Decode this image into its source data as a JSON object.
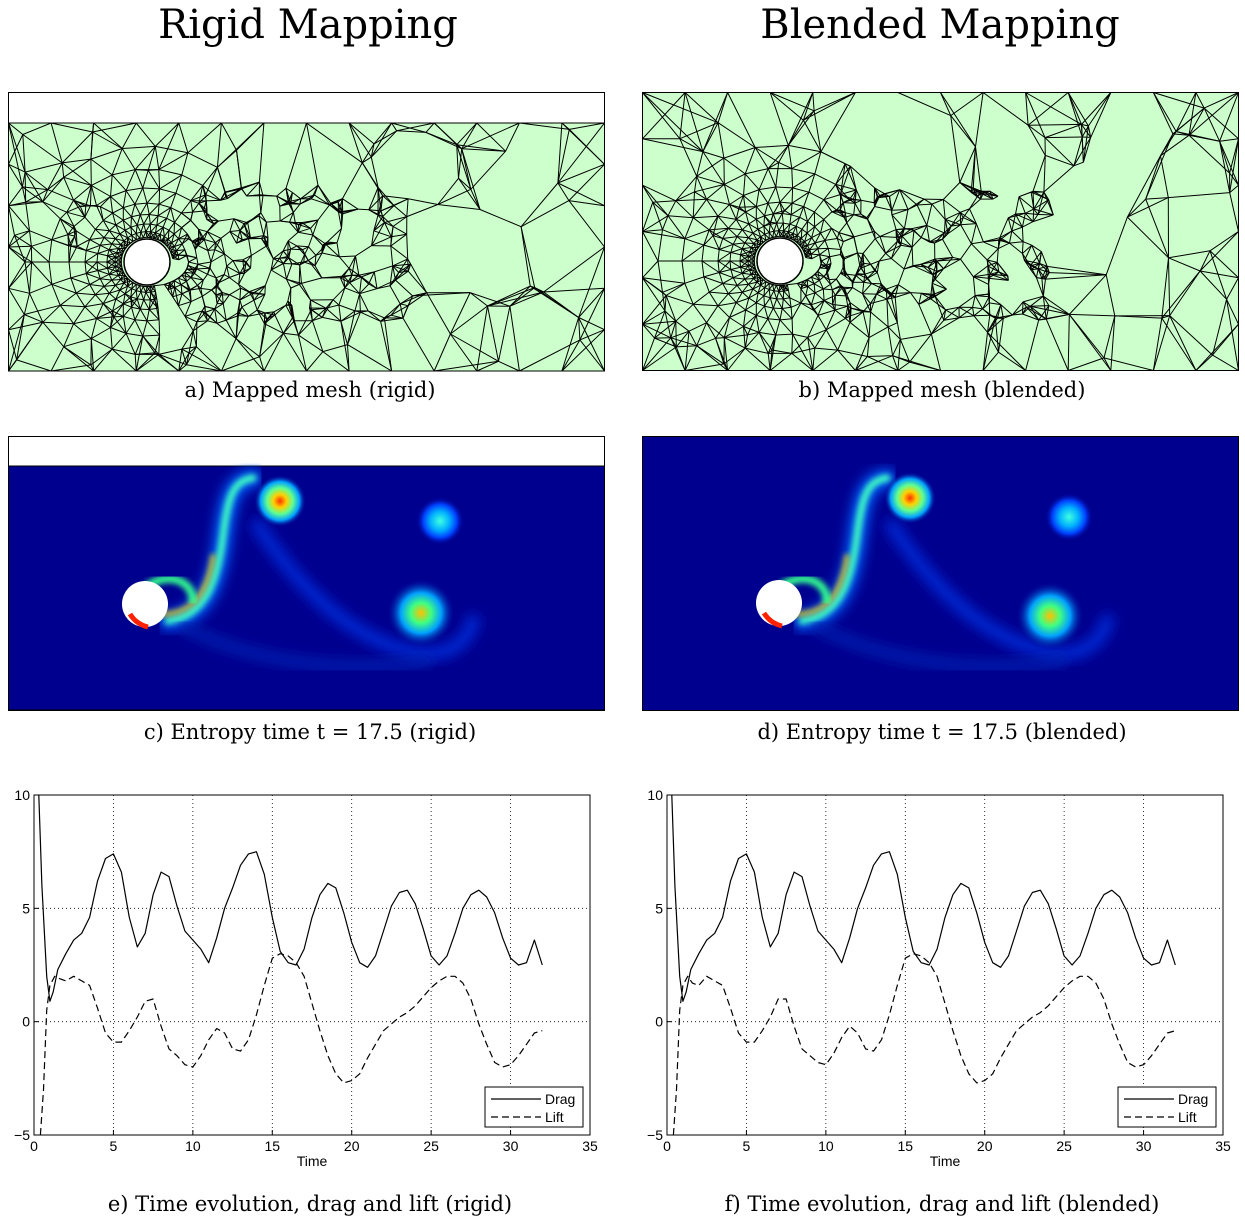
{
  "columns": [
    {
      "title": "Rigid Mapping"
    },
    {
      "title": "Blended Mapping"
    }
  ],
  "captions": {
    "a": "a) Mapped mesh (rigid)",
    "b": "b) Mapped mesh (blended)",
    "c": "c) Entropy time t = 17.5 (rigid)",
    "d": "d) Entropy time t = 17.5 (blended)",
    "e": "e) Time evolution, drag and lift (rigid)",
    "f": "f) Time evolution, drag and lift (blended)"
  },
  "colors": {
    "mesh_fill": "#ccffcc",
    "field_background": "#00008f",
    "line": "#000000"
  },
  "chart_data": [
    {
      "type": "line",
      "xlabel": "Time",
      "ylabel": "",
      "xlim": [
        0,
        35
      ],
      "ylim": [
        -5,
        10
      ],
      "xticks": [
        "0",
        "5",
        "10",
        "15",
        "20",
        "25",
        "30",
        "35"
      ],
      "yticks": [
        "-5",
        "0",
        "5",
        "10"
      ],
      "grid": true,
      "legend_position": "bottom-right",
      "series": [
        {
          "name": "Drag",
          "style": "solid",
          "x": [
            0.3,
            0.5,
            0.8,
            1.0,
            1.2,
            1.5,
            2.0,
            2.5,
            3.0,
            3.5,
            4.0,
            4.5,
            5.0,
            5.5,
            6.0,
            6.5,
            7.0,
            7.5,
            8.0,
            8.5,
            9.0,
            9.5,
            10.0,
            10.5,
            11.0,
            11.5,
            12.0,
            12.5,
            13.0,
            13.5,
            14.0,
            14.5,
            15.0,
            15.5,
            16.0,
            16.5,
            17.0,
            17.5,
            18.0,
            18.5,
            19.0,
            19.5,
            20.0,
            20.5,
            21.0,
            21.5,
            22.0,
            22.5,
            23.0,
            23.5,
            24.0,
            24.5,
            25.0,
            25.5,
            26.0,
            26.5,
            27.0,
            27.5,
            28.0,
            28.5,
            29.0,
            29.5,
            30.0,
            30.5,
            31.0,
            31.5,
            32.0
          ],
          "y": [
            10.0,
            6.0,
            2.0,
            0.9,
            1.3,
            2.3,
            3.0,
            3.6,
            3.9,
            4.6,
            6.2,
            7.2,
            7.4,
            6.6,
            4.6,
            3.3,
            3.9,
            5.6,
            6.6,
            6.4,
            5.1,
            4.0,
            3.6,
            3.2,
            2.6,
            3.7,
            5.0,
            5.9,
            6.9,
            7.4,
            7.5,
            6.5,
            4.6,
            3.1,
            2.6,
            2.5,
            3.2,
            4.6,
            5.6,
            6.1,
            5.9,
            4.8,
            3.5,
            2.6,
            2.4,
            2.9,
            4.0,
            5.1,
            5.7,
            5.8,
            5.2,
            4.1,
            2.9,
            2.5,
            2.9,
            3.9,
            5.0,
            5.6,
            5.8,
            5.5,
            4.8,
            3.7,
            2.8,
            2.5,
            2.6,
            3.6,
            2.5
          ]
        },
        {
          "name": "Lift",
          "style": "dashed",
          "x": [
            0.4,
            0.6,
            0.8,
            1.0,
            1.3,
            1.6,
            2.0,
            2.5,
            3.0,
            3.5,
            4.0,
            4.5,
            5.0,
            5.5,
            6.0,
            6.5,
            7.0,
            7.5,
            8.0,
            8.5,
            9.0,
            9.5,
            10.0,
            10.5,
            11.0,
            11.5,
            12.0,
            12.5,
            13.0,
            13.5,
            14.0,
            14.5,
            15.0,
            15.5,
            16.0,
            16.5,
            17.0,
            17.5,
            18.0,
            18.5,
            19.0,
            19.5,
            20.0,
            20.5,
            21.0,
            21.5,
            22.0,
            22.5,
            23.0,
            23.5,
            24.0,
            24.5,
            25.0,
            25.5,
            26.0,
            26.5,
            27.0,
            27.5,
            28.0,
            28.5,
            29.0,
            29.5,
            30.0,
            30.5,
            31.0,
            31.5,
            32.0
          ],
          "y": [
            -5.0,
            -3.0,
            0.5,
            1.6,
            2.0,
            1.9,
            1.8,
            2.0,
            1.8,
            1.6,
            0.6,
            -0.5,
            -0.9,
            -0.9,
            -0.4,
            0.2,
            0.9,
            1.0,
            -0.2,
            -1.2,
            -1.5,
            -1.9,
            -2.0,
            -1.5,
            -0.8,
            -0.3,
            -0.5,
            -1.2,
            -1.3,
            -0.8,
            0.3,
            1.6,
            2.8,
            3.0,
            2.9,
            2.6,
            2.0,
            0.8,
            -0.4,
            -1.5,
            -2.3,
            -2.7,
            -2.6,
            -2.3,
            -1.6,
            -1.0,
            -0.4,
            -0.1,
            0.2,
            0.4,
            0.7,
            1.1,
            1.5,
            1.8,
            2.0,
            2.0,
            1.7,
            1.0,
            -0.1,
            -1.0,
            -1.8,
            -2.0,
            -1.9,
            -1.5,
            -1.0,
            -0.5,
            -0.4
          ]
        }
      ]
    },
    {
      "type": "line",
      "xlabel": "Time",
      "ylabel": "",
      "xlim": [
        0,
        35
      ],
      "ylim": [
        -5,
        10
      ],
      "xticks": [
        "0",
        "5",
        "10",
        "15",
        "20",
        "25",
        "30",
        "35"
      ],
      "yticks": [
        "-5",
        "0",
        "5",
        "10"
      ],
      "grid": true,
      "legend_position": "bottom-right",
      "series": [
        {
          "name": "Drag",
          "style": "solid",
          "x": [
            0.3,
            0.5,
            0.8,
            1.0,
            1.2,
            1.5,
            2.0,
            2.5,
            3.0,
            3.5,
            4.0,
            4.5,
            5.0,
            5.5,
            6.0,
            6.5,
            7.0,
            7.5,
            8.0,
            8.5,
            9.0,
            9.5,
            10.0,
            10.5,
            11.0,
            11.5,
            12.0,
            12.5,
            13.0,
            13.5,
            14.0,
            14.5,
            15.0,
            15.5,
            16.0,
            16.5,
            17.0,
            17.5,
            18.0,
            18.5,
            19.0,
            19.5,
            20.0,
            20.5,
            21.0,
            21.5,
            22.0,
            22.5,
            23.0,
            23.5,
            24.0,
            24.5,
            25.0,
            25.5,
            26.0,
            26.5,
            27.0,
            27.5,
            28.0,
            28.5,
            29.0,
            29.5,
            30.0,
            30.5,
            31.0,
            31.5,
            32.0
          ],
          "y": [
            10.0,
            6.0,
            2.0,
            0.9,
            1.3,
            2.3,
            3.0,
            3.6,
            3.9,
            4.6,
            6.2,
            7.2,
            7.4,
            6.6,
            4.6,
            3.3,
            3.9,
            5.6,
            6.6,
            6.4,
            5.1,
            4.0,
            3.6,
            3.2,
            2.6,
            3.7,
            5.0,
            5.9,
            6.9,
            7.4,
            7.5,
            6.5,
            4.6,
            3.1,
            2.6,
            2.5,
            3.2,
            4.6,
            5.6,
            6.1,
            5.9,
            4.8,
            3.5,
            2.6,
            2.4,
            2.9,
            4.0,
            5.1,
            5.7,
            5.8,
            5.2,
            4.1,
            2.9,
            2.5,
            2.9,
            3.9,
            5.0,
            5.6,
            5.8,
            5.5,
            4.8,
            3.7,
            2.8,
            2.5,
            2.6,
            3.6,
            2.5
          ]
        },
        {
          "name": "Lift",
          "style": "dashed",
          "x": [
            0.4,
            0.6,
            0.8,
            1.0,
            1.3,
            1.6,
            2.0,
            2.5,
            3.0,
            3.5,
            4.0,
            4.5,
            5.0,
            5.5,
            6.0,
            6.5,
            7.0,
            7.5,
            8.0,
            8.5,
            9.0,
            9.5,
            10.0,
            10.5,
            11.0,
            11.5,
            12.0,
            12.5,
            13.0,
            13.5,
            14.0,
            14.5,
            15.0,
            15.5,
            16.0,
            16.5,
            17.0,
            17.5,
            18.0,
            18.5,
            19.0,
            19.5,
            20.0,
            20.5,
            21.0,
            21.5,
            22.0,
            22.5,
            23.0,
            23.5,
            24.0,
            24.5,
            25.0,
            25.5,
            26.0,
            26.5,
            27.0,
            27.5,
            28.0,
            28.5,
            29.0,
            29.5,
            30.0,
            30.5,
            31.0,
            31.5,
            32.0
          ],
          "y": [
            -5.0,
            -3.0,
            0.5,
            1.6,
            2.0,
            1.7,
            1.6,
            2.0,
            1.8,
            1.6,
            0.6,
            -0.5,
            -0.9,
            -0.9,
            -0.4,
            0.2,
            1.0,
            1.0,
            -0.2,
            -1.2,
            -1.5,
            -1.8,
            -1.9,
            -1.4,
            -0.7,
            -0.2,
            -0.5,
            -1.2,
            -1.3,
            -0.8,
            0.3,
            1.6,
            2.8,
            3.0,
            2.9,
            2.6,
            2.0,
            0.8,
            -0.4,
            -1.5,
            -2.3,
            -2.7,
            -2.6,
            -2.3,
            -1.6,
            -1.0,
            -0.4,
            -0.1,
            0.2,
            0.4,
            0.7,
            1.1,
            1.5,
            1.8,
            2.0,
            2.0,
            1.7,
            1.0,
            -0.1,
            -1.0,
            -1.8,
            -2.0,
            -1.9,
            -1.5,
            -1.0,
            -0.5,
            -0.4
          ]
        }
      ]
    }
  ]
}
